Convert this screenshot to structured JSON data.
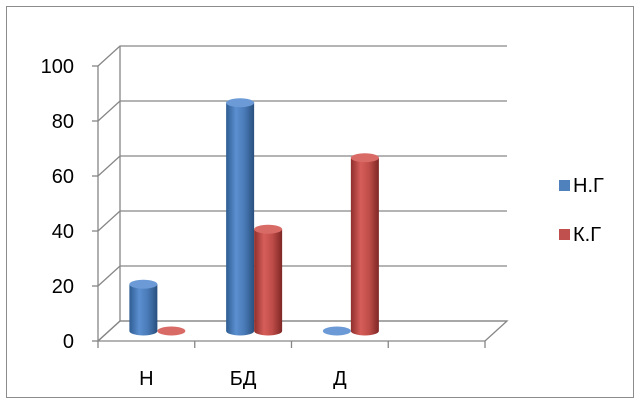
{
  "chart_data": {
    "type": "bar",
    "categories": [
      "Н",
      "БД",
      "Д",
      ""
    ],
    "series": [
      {
        "name": "Н.Г",
        "values": [
          17,
          83,
          0,
          null
        ],
        "color": "#4f81bd"
      },
      {
        "name": "К.Г",
        "values": [
          0,
          37,
          63,
          null
        ],
        "color": "#c0504d"
      }
    ],
    "y_ticks": [
      "0",
      "20",
      "40",
      "60",
      "80",
      "100"
    ],
    "ylim": [
      0,
      100
    ],
    "grid": true,
    "legend": "right",
    "style": "3d-cylinder"
  }
}
